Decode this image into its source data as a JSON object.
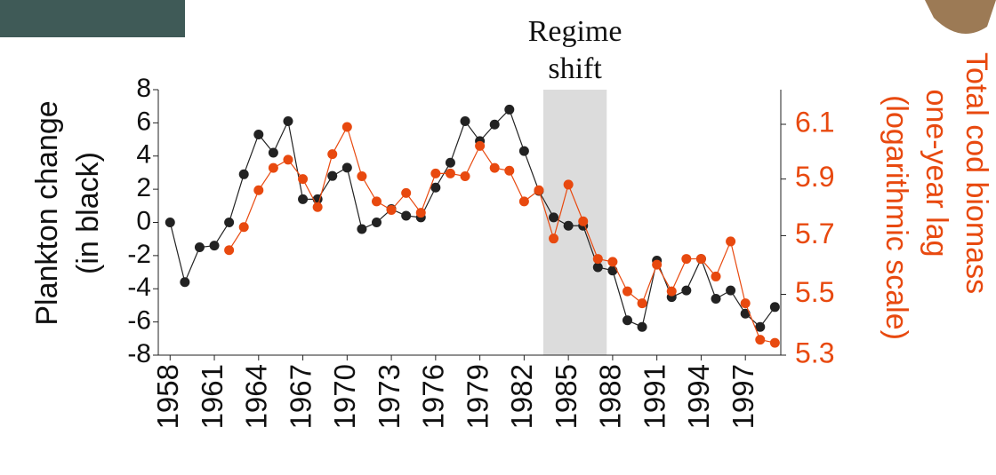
{
  "chart_data": {
    "type": "line",
    "annotation": [
      "Regime",
      "shift"
    ],
    "shaded_span": [
      1983.3,
      1987.6
    ],
    "y_label": [
      "Plankton change",
      "(in black)"
    ],
    "y2_label": [
      "Total cod biomass",
      "one-year lag",
      "(logarithmic scale)"
    ],
    "x": [
      1958,
      1959,
      1960,
      1961,
      1962,
      1963,
      1964,
      1965,
      1966,
      1967,
      1968,
      1969,
      1970,
      1971,
      1972,
      1973,
      1974,
      1975,
      1976,
      1977,
      1978,
      1979,
      1980,
      1981,
      1982,
      1983,
      1984,
      1985,
      1986,
      1987,
      1988,
      1989,
      1990,
      1991,
      1992,
      1993,
      1994,
      1995,
      1996,
      1997,
      1998,
      1999
    ],
    "xlim": [
      1957.2,
      1999.4
    ],
    "xticks": [
      1958,
      1961,
      1964,
      1967,
      1970,
      1973,
      1976,
      1979,
      1982,
      1985,
      1988,
      1991,
      1994,
      1997
    ],
    "ylim": [
      -8,
      8
    ],
    "yticks": [
      -8,
      -6,
      -4,
      -2,
      0,
      2,
      4,
      6,
      8
    ],
    "y2lim": [
      5.3,
      6.23
    ],
    "y2ticks": [
      5.3,
      5.5,
      5.7,
      5.9,
      6.1
    ],
    "y2_log": true,
    "series": [
      {
        "name": "Plankton change",
        "color": "#222222",
        "values": [
          0,
          -3.6,
          -1.5,
          -1.4,
          0,
          2.9,
          5.3,
          4.2,
          6.1,
          1.4,
          1.4,
          2.8,
          3.3,
          -0.4,
          0,
          0.8,
          0.4,
          0.3,
          2.1,
          3.6,
          6.1,
          4.9,
          5.9,
          6.8,
          4.3,
          1.9,
          0.3,
          -0.2,
          -0.2,
          -2.7,
          -2.9,
          -5.9,
          -6.3,
          -2.3,
          -4.5,
          -4.1,
          -2.2,
          -4.6,
          -4.1,
          -5.5,
          -6.3,
          -5.1
        ]
      },
      {
        "name": "Total cod biomass",
        "color": "#e8490f",
        "axis": "y2",
        "values": [
          null,
          null,
          null,
          null,
          5.65,
          5.73,
          5.86,
          5.94,
          5.97,
          5.9,
          5.8,
          5.99,
          6.09,
          5.91,
          5.82,
          5.79,
          5.85,
          5.78,
          5.92,
          5.92,
          5.91,
          6.02,
          5.94,
          5.93,
          5.82,
          5.86,
          5.69,
          5.88,
          5.75,
          5.62,
          5.61,
          5.51,
          5.47,
          5.6,
          5.51,
          5.62,
          5.62,
          5.56,
          5.68,
          5.47,
          5.35,
          5.34
        ]
      }
    ]
  }
}
